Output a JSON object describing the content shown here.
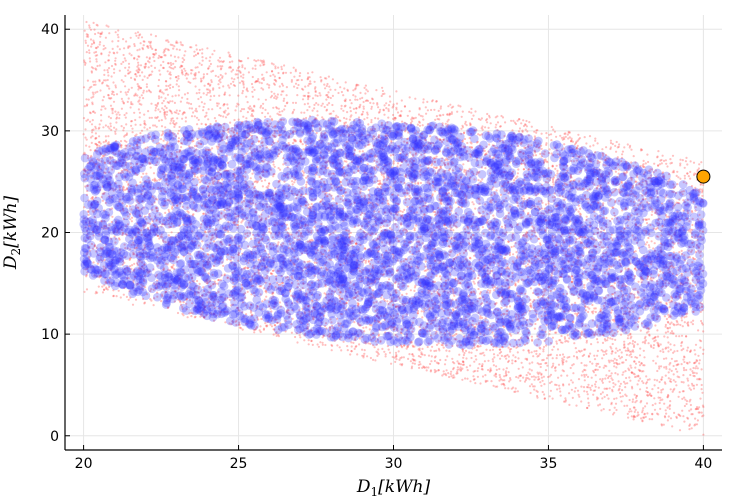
{
  "chart_data": {
    "type": "scatter",
    "title": "",
    "xlabel": "D1[kWh]",
    "ylabel": "D2[kWh]",
    "xlim": [
      19.4,
      40.6
    ],
    "ylim": [
      -1.4,
      41.4
    ],
    "xticks": [
      20,
      25,
      30,
      35,
      40
    ],
    "yticks": [
      0,
      10,
      20,
      30,
      40
    ],
    "xtick_labels": [
      "20",
      "25",
      "30",
      "35",
      "40"
    ],
    "ytick_labels": [
      "0",
      "10",
      "20",
      "30",
      "40"
    ],
    "grid": true,
    "legend": "none",
    "series": [
      {
        "marker": "small-dot",
        "color": "#ff4d4d",
        "opacity": 0.35,
        "count": 9000,
        "region": {
          "shape": "parallelogram",
          "x_range": [
            20,
            40
          ],
          "lower_edge": [
            [
              20,
              14
            ],
            [
              40,
              0
            ]
          ],
          "upper_edge": [
            [
              20,
              41
            ],
            [
              40,
              27
            ]
          ]
        }
      },
      {
        "marker": "circle",
        "color": "#3333ff",
        "opacity": 0.28,
        "count": 4200,
        "region": {
          "shape": "ellipse",
          "center": [
            30,
            20
          ],
          "semi_major_axis_point": [
            10,
            -7.5
          ],
          "semi_minor_axis": 10.2
        }
      },
      {
        "marker": "large-circle",
        "color": "#ffa500",
        "edge_color": "#000000",
        "points": [
          [
            40,
            25.5
          ]
        ]
      }
    ]
  }
}
